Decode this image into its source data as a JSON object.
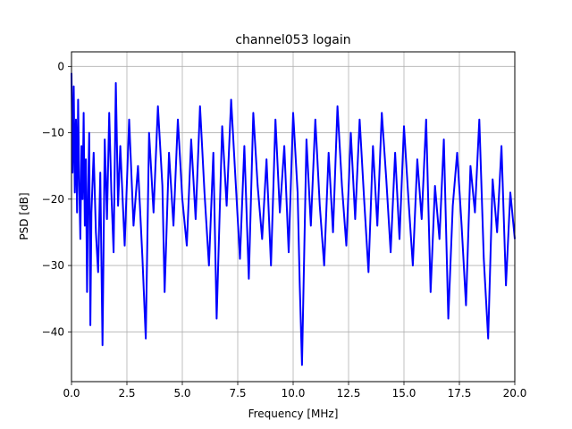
{
  "chart_data": {
    "type": "line",
    "title": "channel053 logain",
    "xlabel": "Frequency [MHz]",
    "ylabel": "PSD [dB]",
    "xlim": [
      0,
      20
    ],
    "ylim": [
      -47.5,
      2.2
    ],
    "xticks": [
      0.0,
      2.5,
      5.0,
      7.5,
      10.0,
      12.5,
      15.0,
      17.5,
      20.0
    ],
    "xtick_labels": [
      "0.0",
      "2.5",
      "5.0",
      "7.5",
      "10.0",
      "12.5",
      "15.0",
      "17.5",
      "20.0"
    ],
    "yticks": [
      0,
      -10,
      -20,
      -30,
      -40
    ],
    "ytick_labels": [
      "0",
      "−10",
      "−20",
      "−30",
      "−40"
    ],
    "grid": true,
    "series": [
      {
        "color": "#0000ff",
        "x": [
          0.0,
          0.05,
          0.1,
          0.15,
          0.2,
          0.25,
          0.3,
          0.35,
          0.4,
          0.45,
          0.5,
          0.55,
          0.6,
          0.65,
          0.7,
          0.75,
          0.8,
          0.85,
          0.9,
          1.0,
          1.1,
          1.2,
          1.3,
          1.4,
          1.5,
          1.6,
          1.7,
          1.8,
          1.9,
          2.0,
          2.1,
          2.2,
          2.4,
          2.6,
          2.8,
          3.0,
          3.2,
          3.35,
          3.5,
          3.7,
          3.9,
          4.1,
          4.2,
          4.4,
          4.6,
          4.8,
          5.0,
          5.2,
          5.4,
          5.6,
          5.8,
          6.0,
          6.2,
          6.4,
          6.55,
          6.8,
          7.0,
          7.2,
          7.4,
          7.6,
          7.8,
          8.0,
          8.2,
          8.4,
          8.6,
          8.8,
          9.0,
          9.2,
          9.4,
          9.6,
          9.8,
          10.0,
          10.2,
          10.3,
          10.4,
          10.6,
          10.8,
          11.0,
          11.2,
          11.4,
          11.6,
          11.8,
          12.0,
          12.2,
          12.4,
          12.6,
          12.8,
          13.0,
          13.2,
          13.4,
          13.6,
          13.8,
          14.0,
          14.2,
          14.4,
          14.6,
          14.8,
          15.0,
          15.2,
          15.4,
          15.6,
          15.8,
          16.0,
          16.2,
          16.4,
          16.6,
          16.8,
          17.0,
          17.2,
          17.4,
          17.6,
          17.8,
          18.0,
          18.2,
          18.4,
          18.6,
          18.8,
          19.0,
          19.2,
          19.4,
          19.6,
          19.8,
          20.0
        ],
        "y": [
          -1,
          -16,
          -3,
          -19,
          -8,
          -22,
          -5,
          -18,
          -26,
          -12,
          -20,
          -7,
          -24,
          -14,
          -34,
          -19,
          -10,
          -39,
          -22,
          -13,
          -25,
          -31,
          -16,
          -42,
          -11,
          -23,
          -7,
          -19,
          -28,
          -2.5,
          -21,
          -12,
          -27,
          -8,
          -24,
          -15,
          -29,
          -41,
          -10,
          -22,
          -6,
          -18,
          -34,
          -13,
          -24,
          -8,
          -20,
          -27,
          -11,
          -23,
          -6,
          -19,
          -30,
          -13,
          -38,
          -9,
          -21,
          -5,
          -17,
          -29,
          -12,
          -32,
          -7,
          -18,
          -26,
          -14,
          -30,
          -8,
          -22,
          -12,
          -28,
          -7,
          -19,
          -33,
          -45,
          -11,
          -24,
          -8,
          -21,
          -30,
          -13,
          -25,
          -6,
          -18,
          -27,
          -10,
          -23,
          -8,
          -20,
          -31,
          -12,
          -24,
          -7,
          -17,
          -28,
          -13,
          -26,
          -9,
          -20,
          -30,
          -14,
          -23,
          -8,
          -34,
          -18,
          -26,
          -11,
          -38,
          -21,
          -13,
          -24,
          -36,
          -15,
          -22,
          -8,
          -29,
          -41,
          -17,
          -25,
          -12,
          -33,
          -19,
          -26
        ]
      }
    ]
  }
}
